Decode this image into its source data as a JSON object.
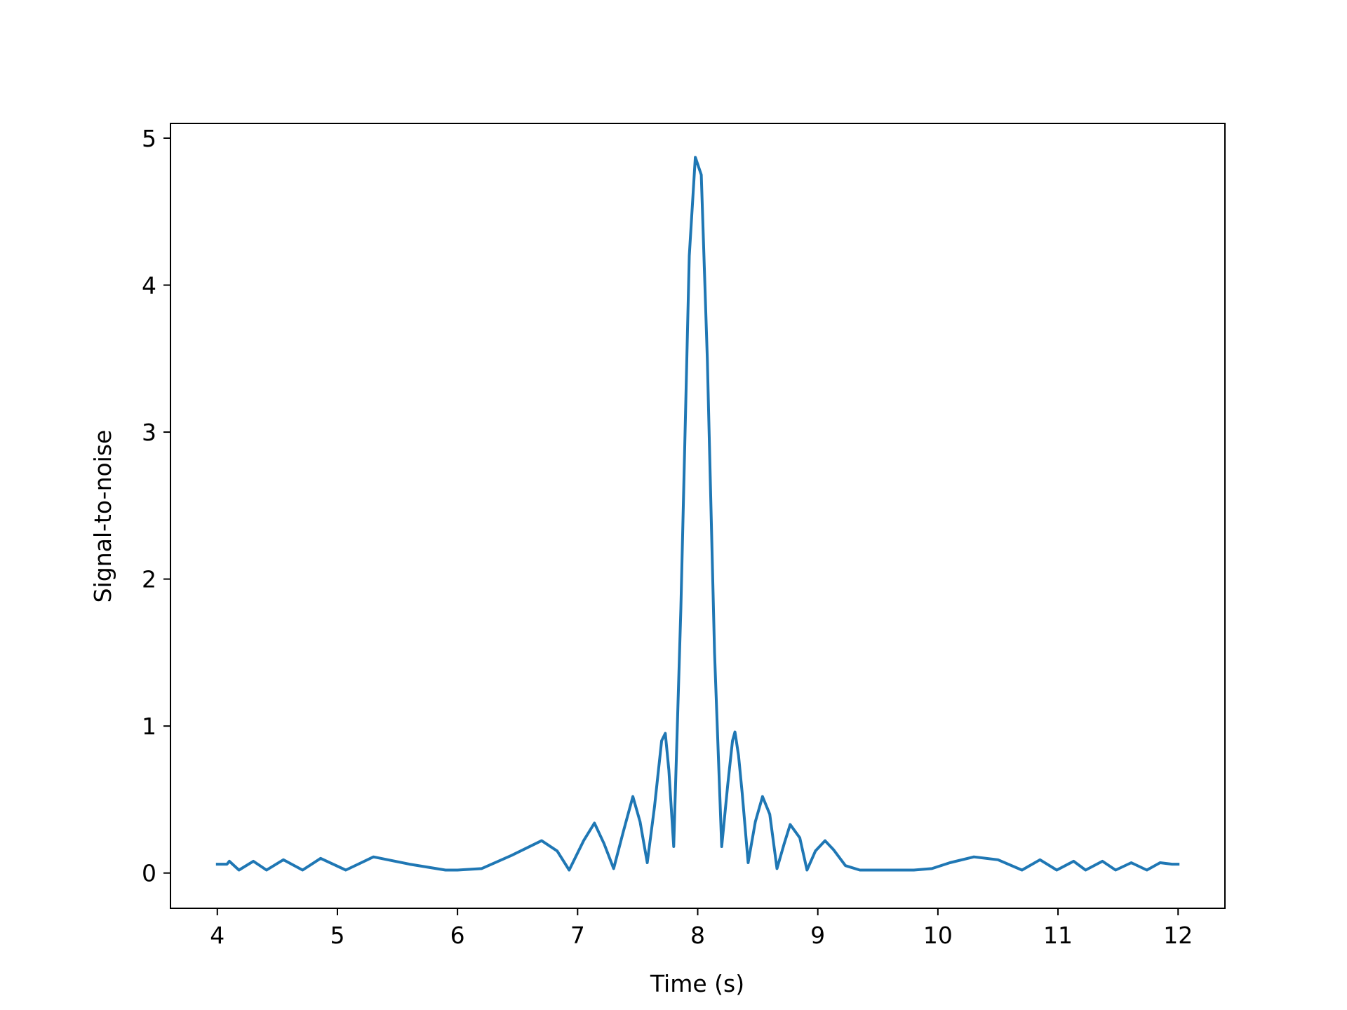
{
  "chart_data": {
    "type": "line",
    "title": "",
    "xlabel": "Time (s)",
    "ylabel": "Signal-to-noise",
    "xlim": [
      3.61,
      12.39
    ],
    "ylim": [
      -0.24,
      5.1
    ],
    "xticks": [
      4,
      5,
      6,
      7,
      8,
      9,
      10,
      11,
      12
    ],
    "yticks": [
      0,
      1,
      2,
      3,
      4,
      5
    ],
    "grid": false,
    "legend": "none",
    "series": [
      {
        "color": "#1f77b4",
        "x": [
          4.0,
          4.08,
          4.1,
          4.18,
          4.3,
          4.41,
          4.55,
          4.71,
          4.86,
          5.07,
          5.3,
          5.6,
          5.9,
          6.0,
          6.2,
          6.45,
          6.7,
          6.83,
          6.93,
          7.05,
          7.14,
          7.22,
          7.3,
          7.38,
          7.46,
          7.52,
          7.58,
          7.64,
          7.7,
          7.73,
          7.76,
          7.8,
          7.86,
          7.93,
          7.98,
          8.03,
          8.08,
          8.14,
          8.2,
          8.25,
          8.29,
          8.31,
          8.34,
          8.37,
          8.42,
          8.48,
          8.54,
          8.6,
          8.66,
          8.72,
          8.77,
          8.85,
          8.91,
          8.98,
          9.06,
          9.13,
          9.23,
          9.35,
          9.55,
          9.8,
          9.95,
          10.1,
          10.3,
          10.5,
          10.7,
          10.85,
          10.99,
          11.13,
          11.23,
          11.37,
          11.48,
          11.61,
          11.74,
          11.85,
          11.95,
          12.0
        ],
        "y": [
          0.06,
          0.06,
          0.08,
          0.02,
          0.08,
          0.02,
          0.09,
          0.02,
          0.1,
          0.02,
          0.11,
          0.06,
          0.02,
          0.02,
          0.03,
          0.12,
          0.22,
          0.15,
          0.02,
          0.22,
          0.34,
          0.2,
          0.03,
          0.28,
          0.52,
          0.35,
          0.07,
          0.45,
          0.9,
          0.95,
          0.7,
          0.18,
          1.8,
          4.2,
          4.87,
          4.75,
          3.5,
          1.5,
          0.18,
          0.6,
          0.9,
          0.96,
          0.8,
          0.55,
          0.07,
          0.35,
          0.52,
          0.4,
          0.03,
          0.2,
          0.33,
          0.24,
          0.02,
          0.15,
          0.22,
          0.16,
          0.05,
          0.02,
          0.02,
          0.02,
          0.03,
          0.07,
          0.11,
          0.09,
          0.02,
          0.09,
          0.02,
          0.08,
          0.02,
          0.08,
          0.02,
          0.07,
          0.02,
          0.07,
          0.06,
          0.06
        ]
      }
    ]
  }
}
